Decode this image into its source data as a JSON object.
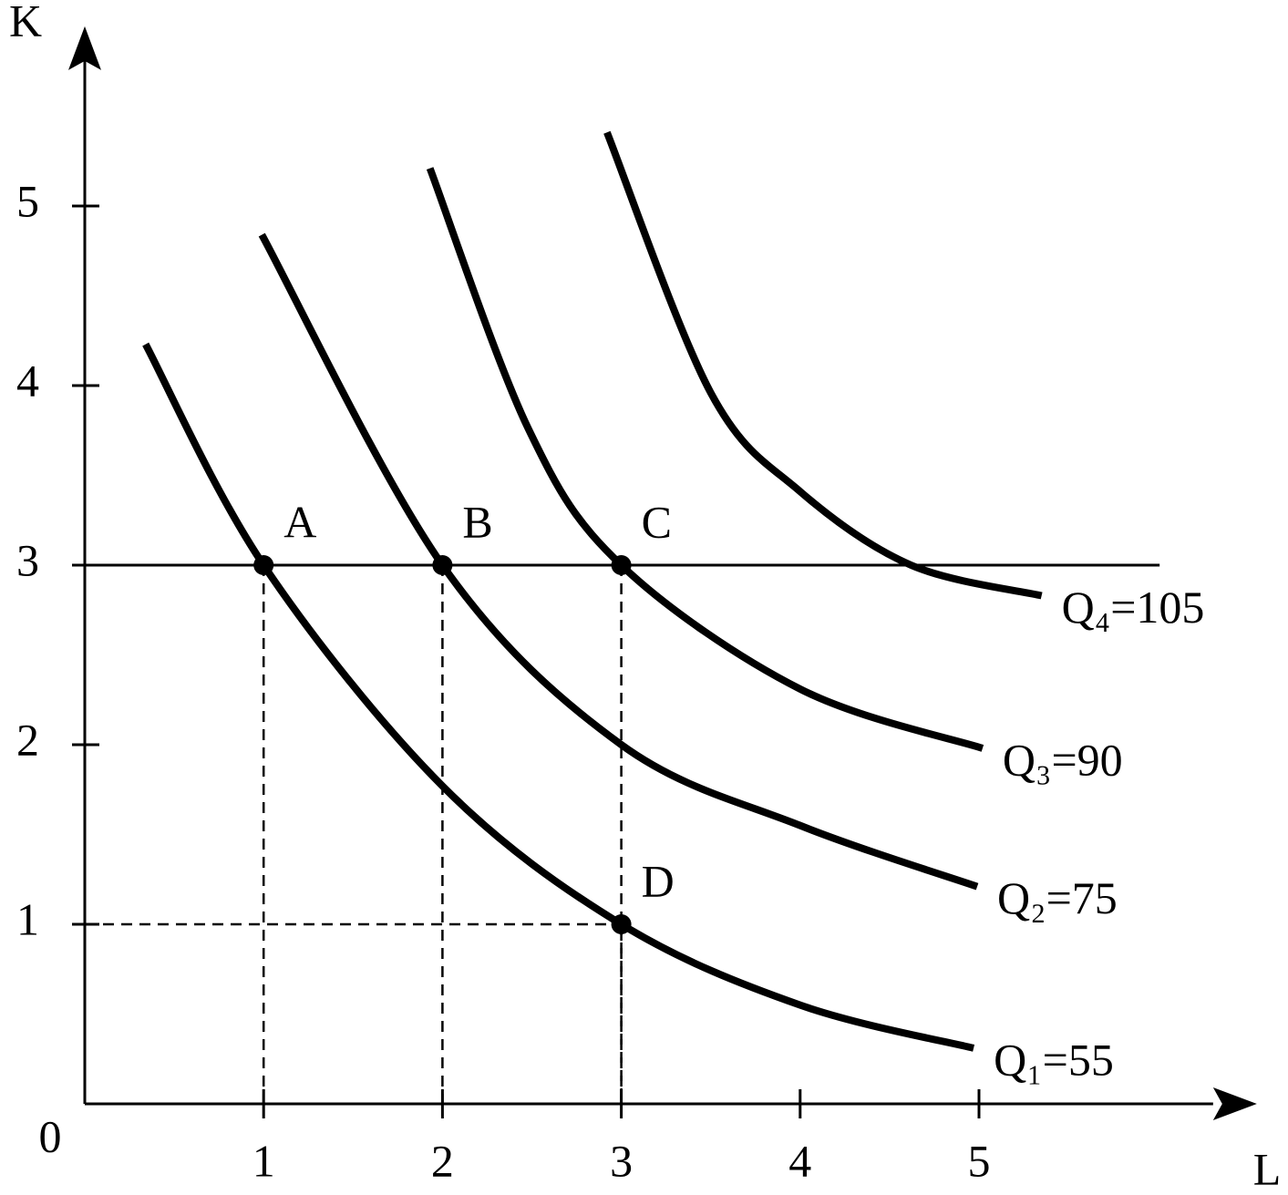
{
  "chart_data": {
    "type": "line",
    "x_label": "L",
    "y_label": "K",
    "origin_label": "0",
    "xlim": [
      0,
      6.36
    ],
    "ylim": [
      0,
      5.94
    ],
    "xticks": [
      1,
      2,
      3,
      4,
      5
    ],
    "yticks": [
      1,
      2,
      3,
      4,
      5
    ],
    "hline": 3,
    "series": [
      {
        "name": "Q₁=55",
        "color": "#000000",
        "x": [
          0.34,
          1,
          2,
          3,
          4,
          4.97
        ],
        "values": [
          4.23,
          3,
          1.77,
          1,
          0.55,
          0.31
        ]
      },
      {
        "name": "Q₂=75",
        "color": "#000000",
        "x": [
          0.99,
          2,
          3,
          4,
          4.99
        ],
        "values": [
          4.84,
          3,
          2,
          1.55,
          1.21
        ]
      },
      {
        "name": "Q₃=90",
        "color": "#000000",
        "x": [
          1.93,
          2.48,
          3,
          4,
          5.02
        ],
        "values": [
          5.21,
          3.76,
          3,
          2.31,
          1.98
        ]
      },
      {
        "name": "Q₄=105",
        "color": "#000000",
        "x": [
          2.92,
          3.5,
          4,
          4.62,
          5.35
        ],
        "values": [
          5.41,
          3.96,
          3.41,
          3,
          2.83
        ]
      }
    ],
    "points": [
      {
        "label": "A",
        "x": 1,
        "y": 3
      },
      {
        "label": "B",
        "x": 2,
        "y": 3
      },
      {
        "label": "C",
        "x": 3,
        "y": 3
      },
      {
        "label": "D",
        "x": 3,
        "y": 1
      }
    ]
  }
}
